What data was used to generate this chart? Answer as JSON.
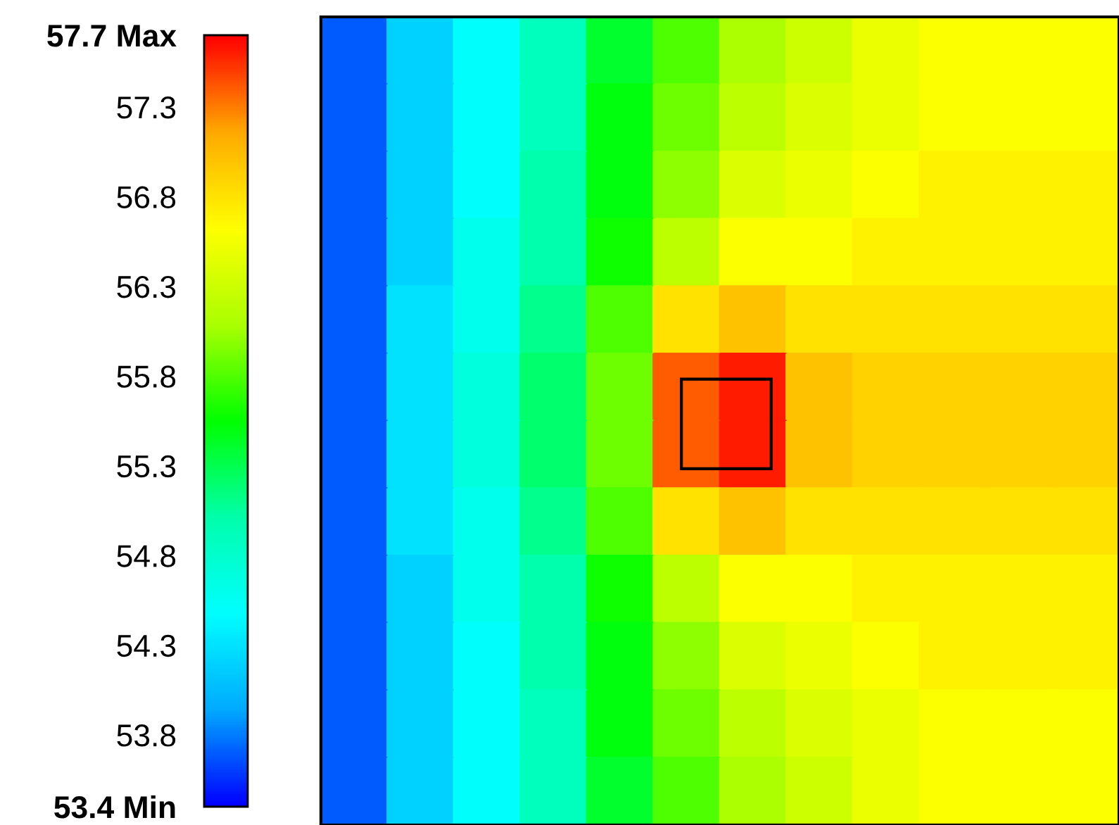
{
  "chart_data": {
    "type": "heatmap",
    "categories": [
      null,
      null,
      null,
      null,
      null,
      null,
      null,
      null,
      null,
      null,
      null,
      null
    ],
    "y_categories": [
      null,
      null,
      null,
      null,
      null,
      null,
      null,
      null,
      null,
      null,
      null,
      null
    ],
    "cells": [
      [
        53.7,
        54.2,
        54.5,
        54.9,
        55.4,
        55.8,
        56.1,
        56.3,
        56.5,
        56.6,
        56.6,
        56.6
      ],
      [
        53.7,
        54.2,
        54.5,
        54.9,
        55.5,
        55.9,
        56.2,
        56.4,
        56.5,
        56.6,
        56.6,
        56.6
      ],
      [
        53.7,
        54.2,
        54.5,
        55.0,
        55.5,
        56.0,
        56.4,
        56.5,
        56.6,
        56.7,
        56.7,
        56.7
      ],
      [
        53.7,
        54.2,
        54.6,
        55.0,
        55.6,
        56.2,
        56.6,
        56.6,
        56.7,
        56.7,
        56.7,
        56.7
      ],
      [
        53.7,
        54.3,
        54.6,
        55.1,
        55.8,
        56.8,
        57.0,
        56.8,
        56.8,
        56.8,
        56.8,
        56.8
      ],
      [
        53.7,
        54.3,
        54.7,
        55.2,
        55.9,
        57.4,
        57.6,
        57.0,
        56.9,
        56.9,
        56.9,
        56.9
      ],
      [
        53.7,
        54.3,
        54.7,
        55.2,
        55.9,
        57.4,
        57.6,
        57.0,
        56.9,
        56.9,
        56.9,
        56.9
      ],
      [
        53.7,
        54.3,
        54.6,
        55.1,
        55.8,
        56.8,
        57.0,
        56.8,
        56.8,
        56.8,
        56.8,
        56.8
      ],
      [
        53.7,
        54.2,
        54.6,
        55.0,
        55.6,
        56.2,
        56.6,
        56.6,
        56.7,
        56.7,
        56.7,
        56.7
      ],
      [
        53.7,
        54.2,
        54.5,
        55.0,
        55.5,
        56.0,
        56.4,
        56.5,
        56.6,
        56.7,
        56.7,
        56.7
      ],
      [
        53.7,
        54.2,
        54.5,
        54.9,
        55.5,
        55.9,
        56.2,
        56.4,
        56.5,
        56.6,
        56.6,
        56.6
      ],
      [
        53.7,
        54.2,
        54.5,
        54.9,
        55.4,
        55.8,
        56.1,
        56.3,
        56.5,
        56.6,
        56.6,
        56.6
      ]
    ],
    "clim": [
      53.4,
      57.7
    ],
    "cticks": [
      {
        "value": 53.4,
        "label": "53.4 Min"
      },
      53.8,
      54.3,
      54.8,
      55.3,
      55.8,
      56.3,
      56.8,
      57.3,
      {
        "value": 57.7,
        "label": "57.7 Max"
      }
    ],
    "colors": [
      "#0000ff",
      "#00aaff",
      "#00ffff",
      "#00ffaa",
      "#00ff00",
      "#aaff00",
      "#ffff00",
      "#ffaa00",
      "#ff0000"
    ],
    "tick_labels": false
  }
}
